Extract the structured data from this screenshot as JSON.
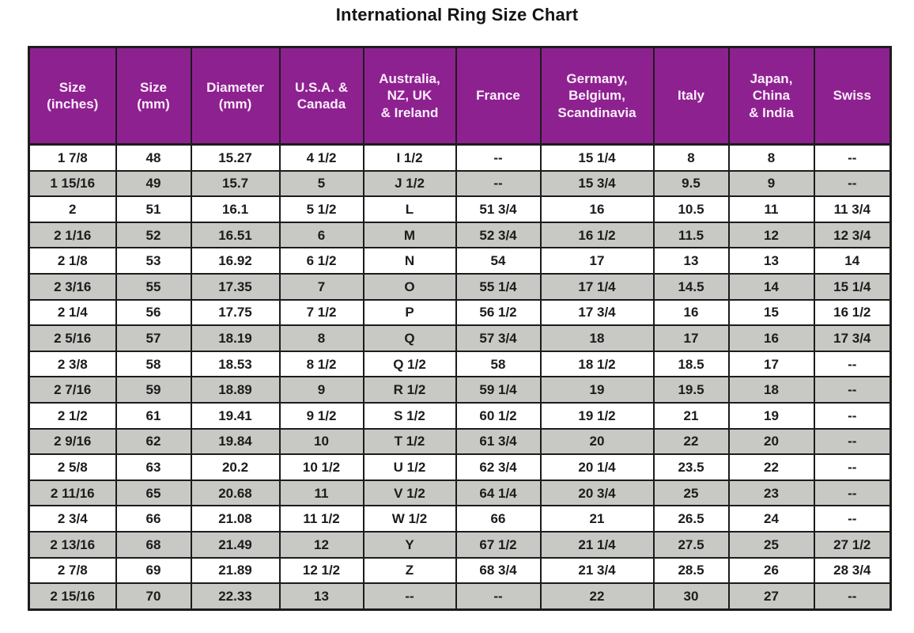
{
  "title": "International Ring Size Chart",
  "colors": {
    "header_bg": "#8e2190",
    "header_text": "#fbeefc",
    "row_white": "#ffffff",
    "row_gray": "#c8c8c5",
    "border": "#1c1c1c",
    "title_color": "#141414"
  },
  "chart_data": {
    "type": "table",
    "title": "International Ring Size Chart",
    "columns": [
      "Size\n(inches)",
      "Size\n(mm)",
      "Diameter\n(mm)",
      "U.S.A. &\nCanada",
      "Australia,\nNZ, UK\n& Ireland",
      "France",
      "Germany,\nBelgium,\nScandinavia",
      "Italy",
      "Japan,\nChina\n& India",
      "Swiss"
    ],
    "rows": [
      [
        "1  7/8",
        "48",
        "15.27",
        "4 1/2",
        "I 1/2",
        "--",
        "15 1/4",
        "8",
        "8",
        "--"
      ],
      [
        "1 15/16",
        "49",
        "15.7",
        "5",
        "J 1/2",
        "--",
        "15 3/4",
        "9.5",
        "9",
        "--"
      ],
      [
        "2",
        "51",
        "16.1",
        "5 1/2",
        "L",
        "51 3/4",
        "16",
        "10.5",
        "11",
        "11 3/4"
      ],
      [
        "2  1/16",
        "52",
        "16.51",
        "6",
        "M",
        "52 3/4",
        "16 1/2",
        "11.5",
        "12",
        "12 3/4"
      ],
      [
        "2  1/8",
        "53",
        "16.92",
        "6 1/2",
        "N",
        "54",
        "17",
        "13",
        "13",
        "14"
      ],
      [
        "2  3/16",
        "55",
        "17.35",
        "7",
        "O",
        "55 1/4",
        "17 1/4",
        "14.5",
        "14",
        "15 1/4"
      ],
      [
        "2  1/4",
        "56",
        "17.75",
        "7 1/2",
        "P",
        "56 1/2",
        "17 3/4",
        "16",
        "15",
        "16 1/2"
      ],
      [
        "2  5/16",
        "57",
        "18.19",
        "8",
        "Q",
        "57 3/4",
        "18",
        "17",
        "16",
        "17 3/4"
      ],
      [
        "2  3/8",
        "58",
        "18.53",
        "8 1/2",
        "Q 1/2",
        "58",
        "18 1/2",
        "18.5",
        "17",
        "--"
      ],
      [
        "2  7/16",
        "59",
        "18.89",
        "9",
        "R 1/2",
        "59 1/4",
        "19",
        "19.5",
        "18",
        "--"
      ],
      [
        "2  1/2",
        "61",
        "19.41",
        "9 1/2",
        "S 1/2",
        "60 1/2",
        "19 1/2",
        "21",
        "19",
        "--"
      ],
      [
        "2  9/16",
        "62",
        "19.84",
        "10",
        "T 1/2",
        "61 3/4",
        "20",
        "22",
        "20",
        "--"
      ],
      [
        "2  5/8",
        "63",
        "20.2",
        "10 1/2",
        "U 1/2",
        "62 3/4",
        "20 1/4",
        "23.5",
        "22",
        "--"
      ],
      [
        "2 11/16",
        "65",
        "20.68",
        "11",
        "V 1/2",
        "64 1/4",
        "20 3/4",
        "25",
        "23",
        "--"
      ],
      [
        "2  3/4",
        "66",
        "21.08",
        "11 1/2",
        "W 1/2",
        "66",
        "21",
        "26.5",
        "24",
        "--"
      ],
      [
        "2 13/16",
        "68",
        "21.49",
        "12",
        "Y",
        "67 1/2",
        "21 1/4",
        "27.5",
        "25",
        "27 1/2"
      ],
      [
        "2  7/8",
        "69",
        "21.89",
        "12 1/2",
        "Z",
        "68 3/4",
        "21 3/4",
        "28.5",
        "26",
        "28 3/4"
      ],
      [
        "2 15/16",
        "70",
        "22.33",
        "13",
        "--",
        "--",
        "22",
        "30",
        "27",
        "--"
      ]
    ]
  }
}
